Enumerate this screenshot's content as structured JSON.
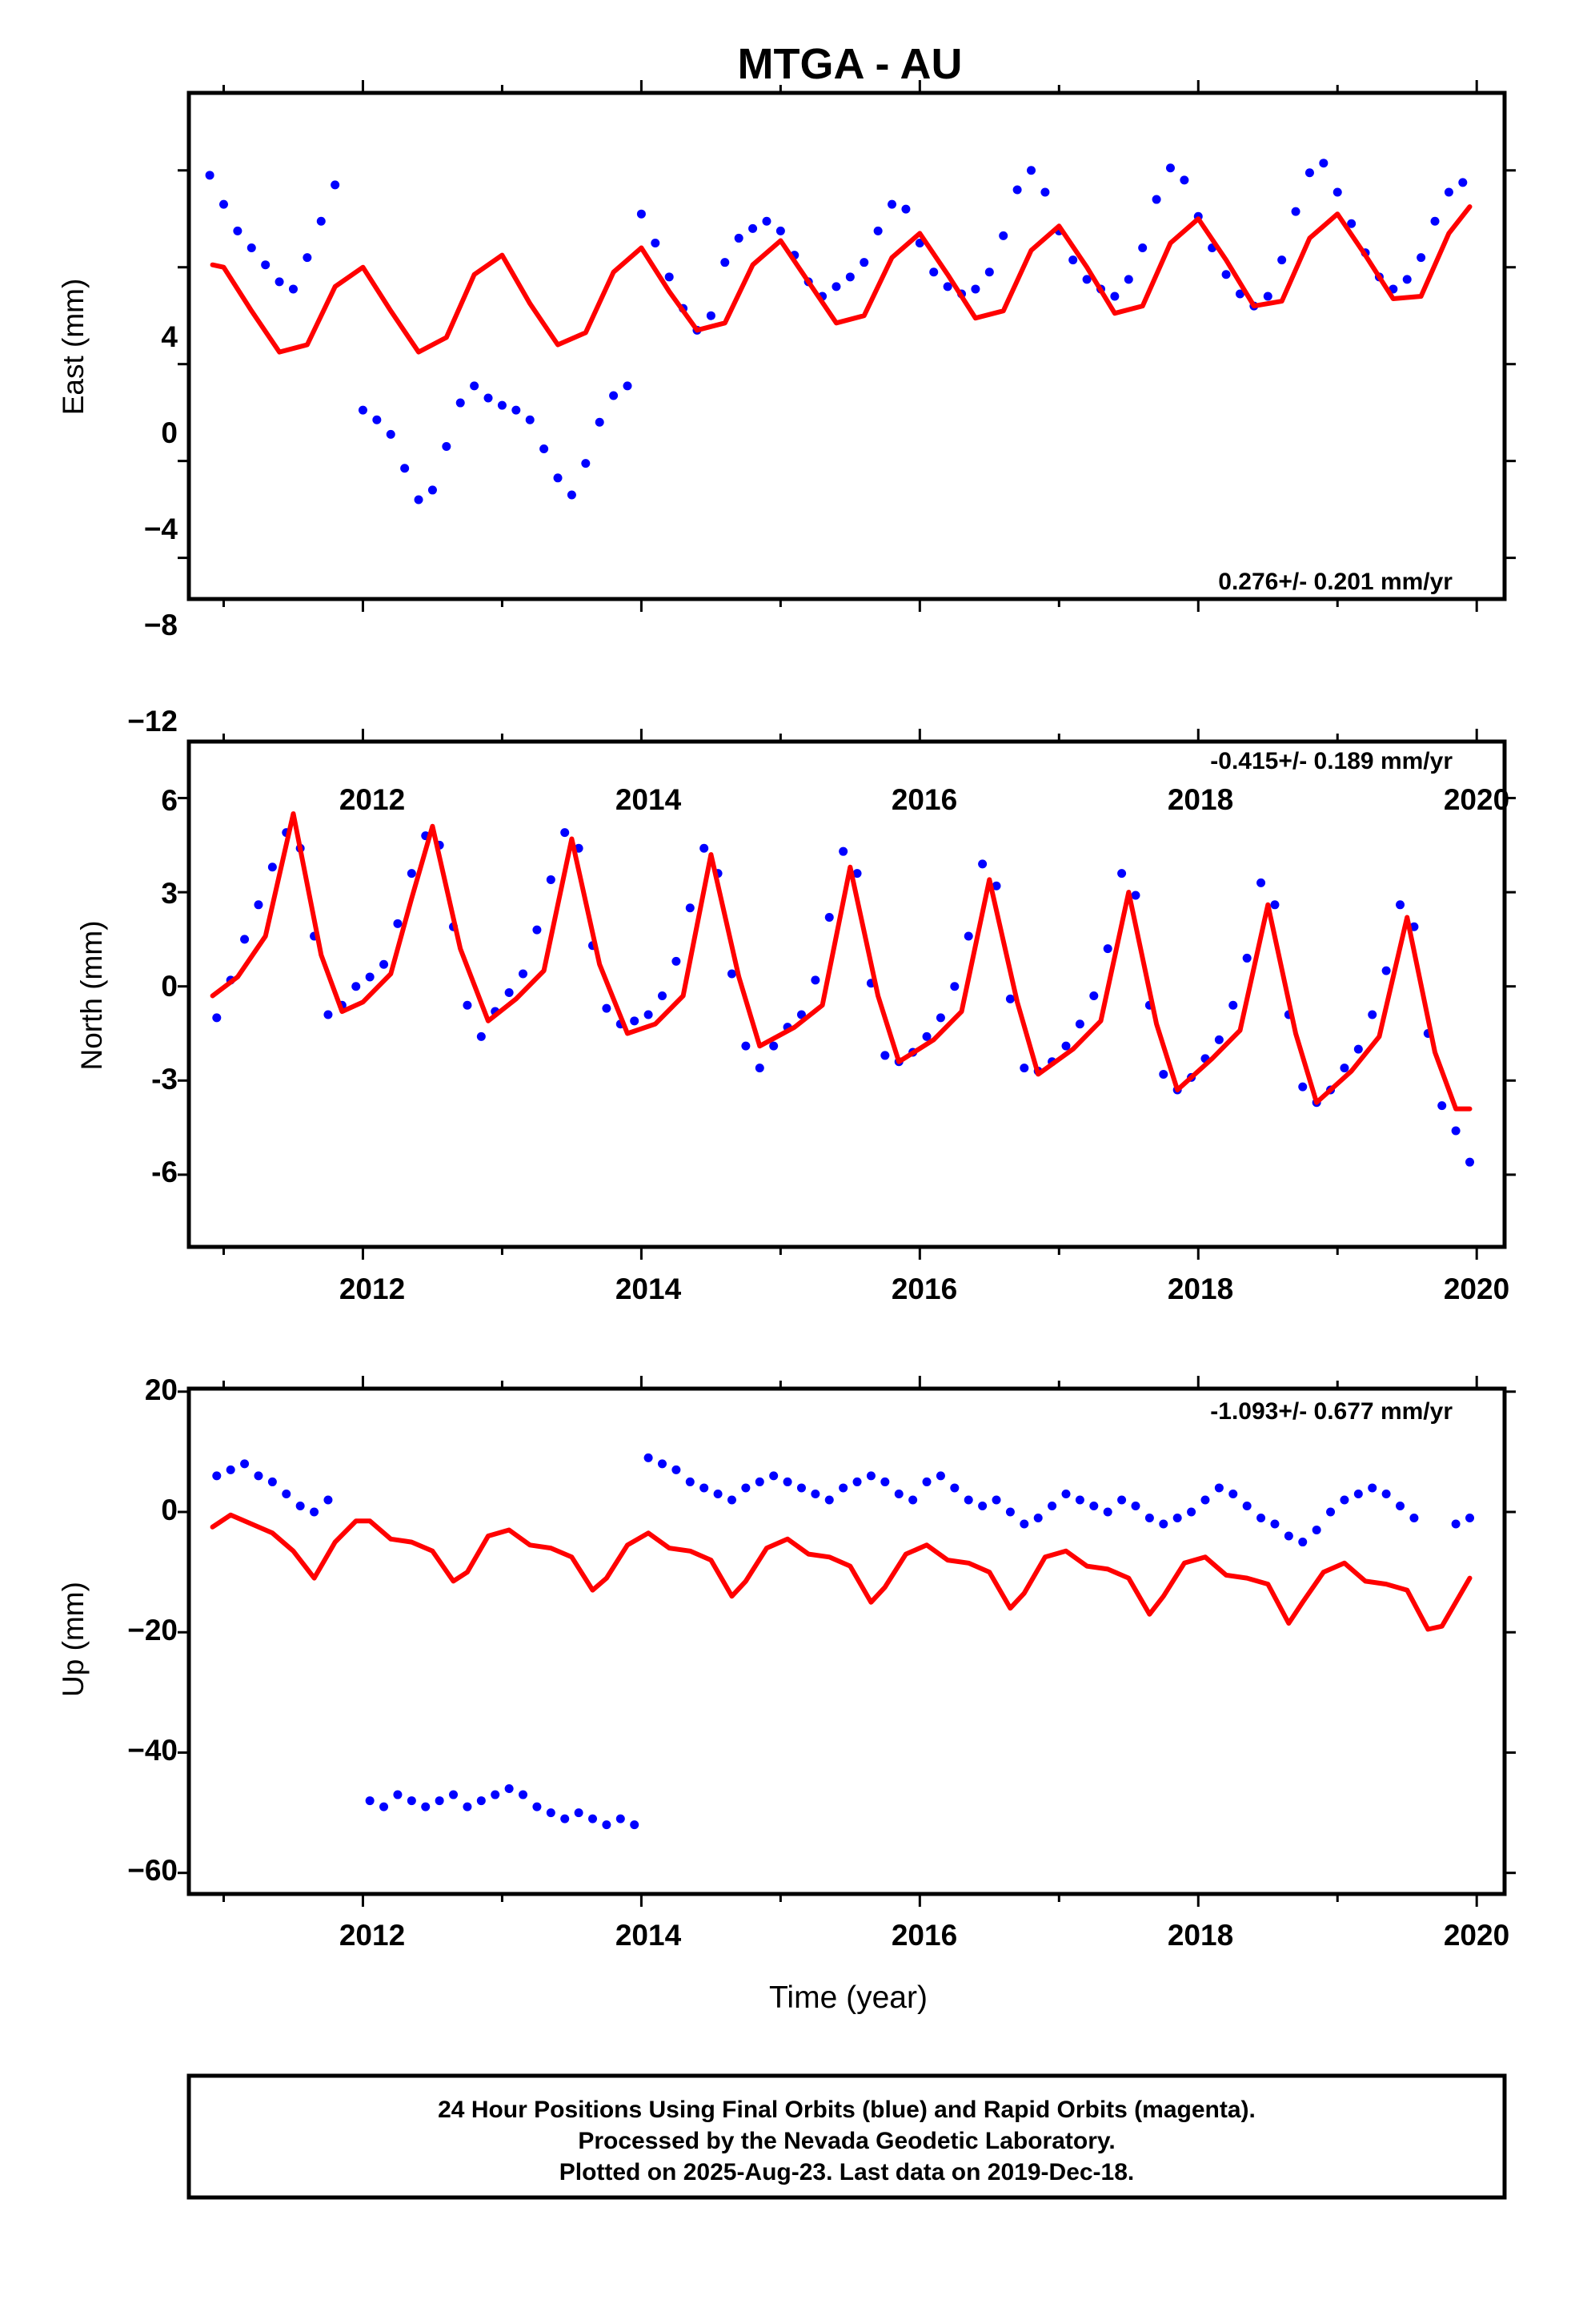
{
  "title": "MTGA - AU",
  "footer": {
    "lines": [
      "24 Hour Positions Using Final Orbits (blue) and Rapid Orbits (magenta).",
      "Processed by the Nevada Geodetic Laboratory.",
      "Plotted on 2025-Aug-23. Last data on 2019-Dec-18."
    ]
  },
  "colors": {
    "observations": "#0000ff",
    "model": "#ff0000",
    "frame": "#000000"
  },
  "chart_data": [
    {
      "type": "scatter",
      "ylabel": "East (mm)",
      "xlabel": "",
      "rate": "0.276+/- 0.201 mm/yr",
      "rate_position": "bottom-right",
      "xlim": [
        2010.75,
        2020.2
      ],
      "ylim": [
        -13.7,
        7.2
      ],
      "xticks": [
        "2012",
        "2014",
        "2016",
        "2018",
        "2020"
      ],
      "yticks": [
        "4",
        "0",
        "−4",
        "−8",
        "−12"
      ],
      "ytick_values": [
        4,
        0,
        -4,
        -8,
        -12
      ],
      "grid": false,
      "series": [
        {
          "role": "observations",
          "style": "blue dots",
          "x": [
            2010.9,
            2011.0,
            2011.1,
            2011.2,
            2011.3,
            2011.4,
            2011.5,
            2011.6,
            2011.7,
            2011.8,
            2012.0,
            2012.1,
            2012.2,
            2012.3,
            2012.4,
            2012.5,
            2012.6,
            2012.7,
            2012.8,
            2012.9,
            2013.0,
            2013.1,
            2013.2,
            2013.3,
            2013.4,
            2013.5,
            2013.6,
            2013.7,
            2013.8,
            2013.9,
            2014.0,
            2014.1,
            2014.2,
            2014.3,
            2014.4,
            2014.5,
            2014.6,
            2014.7,
            2014.8,
            2014.9,
            2015.0,
            2015.1,
            2015.2,
            2015.3,
            2015.4,
            2015.5,
            2015.6,
            2015.7,
            2015.8,
            2015.9,
            2016.0,
            2016.1,
            2016.2,
            2016.3,
            2016.4,
            2016.5,
            2016.6,
            2016.7,
            2016.8,
            2016.9,
            2017.0,
            2017.1,
            2017.2,
            2017.3,
            2017.4,
            2017.5,
            2017.6,
            2017.7,
            2017.8,
            2017.9,
            2018.0,
            2018.1,
            2018.2,
            2018.3,
            2018.4,
            2018.5,
            2018.6,
            2018.7,
            2018.8,
            2018.9,
            2019.0,
            2019.1,
            2019.2,
            2019.3,
            2019.4,
            2019.5,
            2019.6,
            2019.7,
            2019.8,
            2019.9
          ],
          "y": [
            3.8,
            2.6,
            1.5,
            0.8,
            0.1,
            -0.6,
            -0.9,
            0.4,
            1.9,
            3.4,
            -5.9,
            -6.3,
            -6.9,
            -8.3,
            -9.6,
            -9.2,
            -7.4,
            -5.6,
            -4.9,
            -5.4,
            -5.7,
            -5.9,
            -6.3,
            -7.5,
            -8.7,
            -9.4,
            -8.1,
            -6.4,
            -5.3,
            -4.9,
            2.2,
            1.0,
            -0.4,
            -1.7,
            -2.6,
            -2.0,
            0.2,
            1.2,
            1.6,
            1.9,
            1.5,
            0.5,
            -0.6,
            -1.2,
            -0.8,
            -0.4,
            0.2,
            1.5,
            2.6,
            2.4,
            1.0,
            -0.2,
            -0.8,
            -1.1,
            -0.9,
            -0.2,
            1.3,
            3.2,
            4.0,
            3.1,
            1.5,
            0.3,
            -0.5,
            -0.9,
            -1.2,
            -0.5,
            0.8,
            2.8,
            4.1,
            3.6,
            2.1,
            0.8,
            -0.3,
            -1.1,
            -1.6,
            -1.2,
            0.3,
            2.3,
            3.9,
            4.3,
            3.1,
            1.8,
            0.6,
            -0.4,
            -0.9,
            -0.5,
            0.4,
            1.9,
            3.1,
            3.5
          ]
        },
        {
          "role": "model",
          "style": "red line",
          "x": [
            2010.92,
            2011.0,
            2011.2,
            2011.4,
            2011.6,
            2011.8,
            2012.0,
            2012.2,
            2012.4,
            2012.6,
            2012.8,
            2013.0,
            2013.2,
            2013.4,
            2013.6,
            2013.8,
            2014.0,
            2014.2,
            2014.4,
            2014.6,
            2014.8,
            2015.0,
            2015.2,
            2015.4,
            2015.6,
            2015.8,
            2016.0,
            2016.2,
            2016.4,
            2016.6,
            2016.8,
            2017.0,
            2017.2,
            2017.4,
            2017.6,
            2017.8,
            2018.0,
            2018.2,
            2018.4,
            2018.6,
            2018.8,
            2019.0,
            2019.2,
            2019.4,
            2019.6,
            2019.8,
            2019.95
          ],
          "y": [
            0.1,
            0.0,
            -1.8,
            -3.5,
            -3.2,
            -0.8,
            0.0,
            -1.8,
            -3.5,
            -2.9,
            -0.3,
            0.5,
            -1.5,
            -3.2,
            -2.7,
            -0.2,
            0.8,
            -1.0,
            -2.6,
            -2.3,
            0.1,
            1.1,
            -0.6,
            -2.3,
            -2.0,
            0.4,
            1.4,
            -0.3,
            -2.1,
            -1.8,
            0.7,
            1.7,
            0.0,
            -1.9,
            -1.6,
            1.0,
            2.0,
            0.3,
            -1.6,
            -1.4,
            1.2,
            2.2,
            0.5,
            -1.3,
            -1.2,
            1.4,
            2.5
          ]
        }
      ]
    },
    {
      "type": "scatter",
      "ylabel": "North (mm)",
      "xlabel": "",
      "rate": "-0.415+/- 0.189 mm/yr",
      "rate_position": "top-right",
      "xlim": [
        2010.75,
        2020.2
      ],
      "ylim": [
        -8.3,
        7.8
      ],
      "xticks": [
        "2012",
        "2014",
        "2016",
        "2018",
        "2020"
      ],
      "yticks": [
        "6",
        "3",
        "0",
        "-3",
        "-6"
      ],
      "ytick_values": [
        6,
        3,
        0,
        -3,
        -6
      ],
      "grid": false,
      "series": [
        {
          "role": "observations",
          "style": "blue dots",
          "x": [
            2010.95,
            2011.05,
            2011.15,
            2011.25,
            2011.35,
            2011.45,
            2011.55,
            2011.65,
            2011.75,
            2011.85,
            2011.95,
            2012.05,
            2012.15,
            2012.25,
            2012.35,
            2012.45,
            2012.55,
            2012.65,
            2012.75,
            2012.85,
            2012.95,
            2013.05,
            2013.15,
            2013.25,
            2013.35,
            2013.45,
            2013.55,
            2013.65,
            2013.75,
            2013.85,
            2013.95,
            2014.05,
            2014.15,
            2014.25,
            2014.35,
            2014.45,
            2014.55,
            2014.65,
            2014.75,
            2014.85,
            2014.95,
            2015.05,
            2015.15,
            2015.25,
            2015.35,
            2015.45,
            2015.55,
            2015.65,
            2015.75,
            2015.85,
            2015.95,
            2016.05,
            2016.15,
            2016.25,
            2016.35,
            2016.45,
            2016.55,
            2016.65,
            2016.75,
            2016.85,
            2016.95,
            2017.05,
            2017.15,
            2017.25,
            2017.35,
            2017.45,
            2017.55,
            2017.65,
            2017.75,
            2017.85,
            2017.95,
            2018.05,
            2018.15,
            2018.25,
            2018.35,
            2018.45,
            2018.55,
            2018.65,
            2018.75,
            2018.85,
            2018.95,
            2019.05,
            2019.15,
            2019.25,
            2019.35,
            2019.45,
            2019.55,
            2019.65,
            2019.75,
            2019.85,
            2019.95
          ],
          "y": [
            -1.0,
            0.2,
            1.5,
            2.6,
            3.8,
            4.9,
            4.4,
            1.6,
            -0.9,
            -0.6,
            0.0,
            0.3,
            0.7,
            2.0,
            3.6,
            4.8,
            4.5,
            1.9,
            -0.6,
            -1.6,
            -0.8,
            -0.2,
            0.4,
            1.8,
            3.4,
            4.9,
            4.4,
            1.3,
            -0.7,
            -1.2,
            -1.1,
            -0.9,
            -0.3,
            0.8,
            2.5,
            4.4,
            3.6,
            0.4,
            -1.9,
            -2.6,
            -1.9,
            -1.3,
            -0.9,
            0.2,
            2.2,
            4.3,
            3.6,
            0.1,
            -2.2,
            -2.4,
            -2.1,
            -1.6,
            -1.0,
            0.0,
            1.6,
            3.9,
            3.2,
            -0.4,
            -2.6,
            -2.7,
            -2.4,
            -1.9,
            -1.2,
            -0.3,
            1.2,
            3.6,
            2.9,
            -0.6,
            -2.8,
            -3.3,
            -2.9,
            -2.3,
            -1.7,
            -0.6,
            0.9,
            3.3,
            2.6,
            -0.9,
            -3.2,
            -3.7,
            -3.3,
            -2.6,
            -2.0,
            -0.9,
            0.5,
            2.6,
            1.9,
            -1.5,
            -3.8,
            -4.6,
            -5.6
          ]
        },
        {
          "role": "model",
          "style": "red line",
          "x": [
            2010.92,
            2011.1,
            2011.3,
            2011.5,
            2011.7,
            2011.85,
            2012.0,
            2012.2,
            2012.35,
            2012.5,
            2012.7,
            2012.9,
            2013.1,
            2013.3,
            2013.5,
            2013.7,
            2013.9,
            2014.1,
            2014.3,
            2014.5,
            2014.7,
            2014.85,
            2015.1,
            2015.3,
            2015.5,
            2015.7,
            2015.85,
            2016.1,
            2016.3,
            2016.5,
            2016.7,
            2016.85,
            2017.1,
            2017.3,
            2017.5,
            2017.7,
            2017.85,
            2018.1,
            2018.3,
            2018.5,
            2018.7,
            2018.85,
            2019.1,
            2019.3,
            2019.5,
            2019.7,
            2019.85,
            2019.95
          ],
          "y": [
            -0.3,
            0.3,
            1.6,
            5.5,
            1.0,
            -0.8,
            -0.5,
            0.4,
            2.8,
            5.1,
            1.2,
            -1.1,
            -0.4,
            0.5,
            4.7,
            0.7,
            -1.5,
            -1.2,
            -0.3,
            4.2,
            0.3,
            -1.9,
            -1.3,
            -0.6,
            3.8,
            -0.3,
            -2.4,
            -1.7,
            -0.8,
            3.4,
            -0.5,
            -2.8,
            -2.0,
            -1.1,
            3.0,
            -1.2,
            -3.3,
            -2.3,
            -1.4,
            2.6,
            -1.5,
            -3.7,
            -2.7,
            -1.6,
            2.2,
            -2.1,
            -3.9,
            -3.9
          ]
        }
      ]
    },
    {
      "type": "scatter",
      "ylabel": "Up (mm)",
      "xlabel": "Time (year)",
      "rate": "-1.093+/- 0.677 mm/yr",
      "rate_position": "top-right",
      "xlim": [
        2010.75,
        2020.2
      ],
      "ylim": [
        -63.5,
        20.5
      ],
      "xticks": [
        "2012",
        "2014",
        "2016",
        "2018",
        "2020"
      ],
      "yticks": [
        "20",
        "0",
        "−20",
        "−40",
        "−60"
      ],
      "ytick_values": [
        20,
        0,
        -20,
        -40,
        -60
      ],
      "grid": false,
      "series": [
        {
          "role": "observations",
          "style": "blue dots",
          "x": [
            2010.95,
            2011.05,
            2011.15,
            2011.25,
            2011.35,
            2011.45,
            2011.55,
            2011.65,
            2011.75,
            2012.05,
            2012.15,
            2012.25,
            2012.35,
            2012.45,
            2012.55,
            2012.65,
            2012.75,
            2012.85,
            2012.95,
            2013.05,
            2013.15,
            2013.25,
            2013.35,
            2013.45,
            2013.55,
            2013.65,
            2013.75,
            2013.85,
            2013.95,
            2014.05,
            2014.15,
            2014.25,
            2014.35,
            2014.45,
            2014.55,
            2014.65,
            2014.75,
            2014.85,
            2014.95,
            2015.05,
            2015.15,
            2015.25,
            2015.35,
            2015.45,
            2015.55,
            2015.65,
            2015.75,
            2015.85,
            2015.95,
            2016.05,
            2016.15,
            2016.25,
            2016.35,
            2016.45,
            2016.55,
            2016.65,
            2016.75,
            2016.85,
            2016.95,
            2017.05,
            2017.15,
            2017.25,
            2017.35,
            2017.45,
            2017.55,
            2017.65,
            2017.75,
            2017.85,
            2017.95,
            2018.05,
            2018.15,
            2018.25,
            2018.35,
            2018.45,
            2018.55,
            2018.65,
            2018.75,
            2018.85,
            2018.95,
            2019.05,
            2019.15,
            2019.25,
            2019.35,
            2019.45,
            2019.55,
            2019.85,
            2019.95
          ],
          "y": [
            6,
            7,
            8,
            6,
            5,
            3,
            1,
            0,
            2,
            -48,
            -49,
            -47,
            -48,
            -49,
            -48,
            -47,
            -49,
            -48,
            -47,
            -46,
            -47,
            -49,
            -50,
            -51,
            -50,
            -51,
            -52,
            -51,
            -52,
            9,
            8,
            7,
            5,
            4,
            3,
            2,
            4,
            5,
            6,
            5,
            4,
            3,
            2,
            4,
            5,
            6,
            5,
            3,
            2,
            5,
            6,
            4,
            2,
            1,
            2,
            0,
            -2,
            -1,
            1,
            3,
            2,
            1,
            0,
            2,
            1,
            -1,
            -2,
            -1,
            0,
            2,
            4,
            3,
            1,
            -1,
            -2,
            -4,
            -5,
            -3,
            0,
            2,
            3,
            4,
            3,
            1,
            -1,
            -2,
            -1
          ]
        },
        {
          "role": "model",
          "style": "red line",
          "x": [
            2010.92,
            2011.05,
            2011.2,
            2011.35,
            2011.5,
            2011.65,
            2011.8,
            2011.95,
            2012.05,
            2012.2,
            2012.35,
            2012.5,
            2012.65,
            2012.75,
            2012.9,
            2013.05,
            2013.2,
            2013.35,
            2013.5,
            2013.65,
            2013.75,
            2013.9,
            2014.05,
            2014.2,
            2014.35,
            2014.5,
            2014.65,
            2014.75,
            2014.9,
            2015.05,
            2015.2,
            2015.35,
            2015.5,
            2015.65,
            2015.75,
            2015.9,
            2016.05,
            2016.2,
            2016.35,
            2016.5,
            2016.65,
            2016.75,
            2016.9,
            2017.05,
            2017.2,
            2017.35,
            2017.5,
            2017.65,
            2017.75,
            2017.9,
            2018.05,
            2018.2,
            2018.35,
            2018.5,
            2018.65,
            2018.75,
            2018.9,
            2019.05,
            2019.2,
            2019.35,
            2019.5,
            2019.65,
            2019.75,
            2019.95
          ],
          "y": [
            -2.5,
            -0.5,
            -2.0,
            -3.5,
            -6.5,
            -11.0,
            -5.0,
            -1.5,
            -1.5,
            -4.5,
            -5.0,
            -6.5,
            -11.5,
            -10.0,
            -4.0,
            -3.0,
            -5.5,
            -6.0,
            -7.5,
            -13.0,
            -11.0,
            -5.5,
            -3.5,
            -6.0,
            -6.5,
            -8.0,
            -14.0,
            -11.5,
            -6.0,
            -4.5,
            -7.0,
            -7.5,
            -9.0,
            -15.0,
            -12.5,
            -7.0,
            -5.5,
            -8.0,
            -8.5,
            -10.0,
            -16.0,
            -13.5,
            -7.5,
            -6.5,
            -9.0,
            -9.5,
            -11.0,
            -17.0,
            -14.0,
            -8.5,
            -7.5,
            -10.5,
            -11.0,
            -12.0,
            -18.5,
            -15.0,
            -10.0,
            -8.5,
            -11.5,
            -12.0,
            -13.0,
            -19.5,
            -19.0,
            -11.0
          ]
        }
      ]
    }
  ]
}
